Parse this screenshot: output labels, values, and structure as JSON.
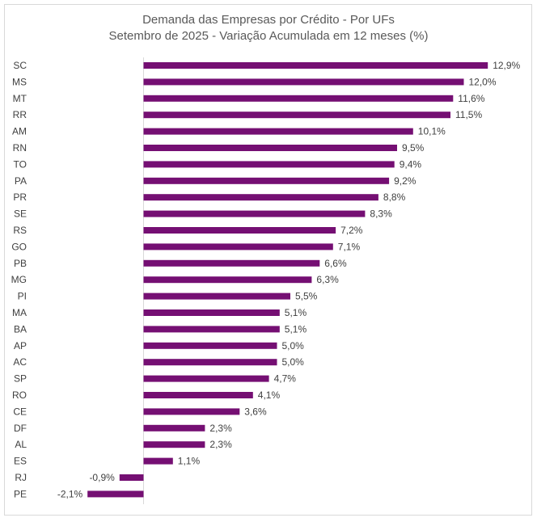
{
  "chart_data": {
    "type": "bar",
    "orientation": "horizontal",
    "title": "Demanda das Empresas por Crédito - Por UFs",
    "subtitle": "Setembro de 2025 - Variação Acumulada em 12 meses (%)",
    "categories": [
      "SC",
      "MS",
      "MT",
      "RR",
      "AM",
      "RN",
      "TO",
      "PA",
      "PR",
      "SE",
      "RS",
      "GO",
      "PB",
      "MG",
      "PI",
      "MA",
      "BA",
      "AP",
      "AC",
      "SP",
      "RO",
      "CE",
      "DF",
      "AL",
      "ES",
      "RJ",
      "PE"
    ],
    "values": [
      12.9,
      12.0,
      11.6,
      11.5,
      10.1,
      9.5,
      9.4,
      9.2,
      8.8,
      8.3,
      7.2,
      7.1,
      6.6,
      6.3,
      5.5,
      5.1,
      5.1,
      5.0,
      5.0,
      4.7,
      4.1,
      3.6,
      2.3,
      2.3,
      1.1,
      -0.9,
      -2.1
    ],
    "value_labels": [
      "12,9%",
      "12,0%",
      "11,6%",
      "11,5%",
      "10,1%",
      "9,5%",
      "9,4%",
      "9,2%",
      "8,8%",
      "8,3%",
      "7,2%",
      "7,1%",
      "6,6%",
      "6,3%",
      "5,5%",
      "5,1%",
      "5,1%",
      "5,0%",
      "5,0%",
      "4,7%",
      "4,1%",
      "3,6%",
      "2,3%",
      "2,3%",
      "1,1%",
      "-0,9%",
      "-2,1%"
    ],
    "bar_color": "#750f73",
    "grid": false,
    "legend": "none"
  }
}
